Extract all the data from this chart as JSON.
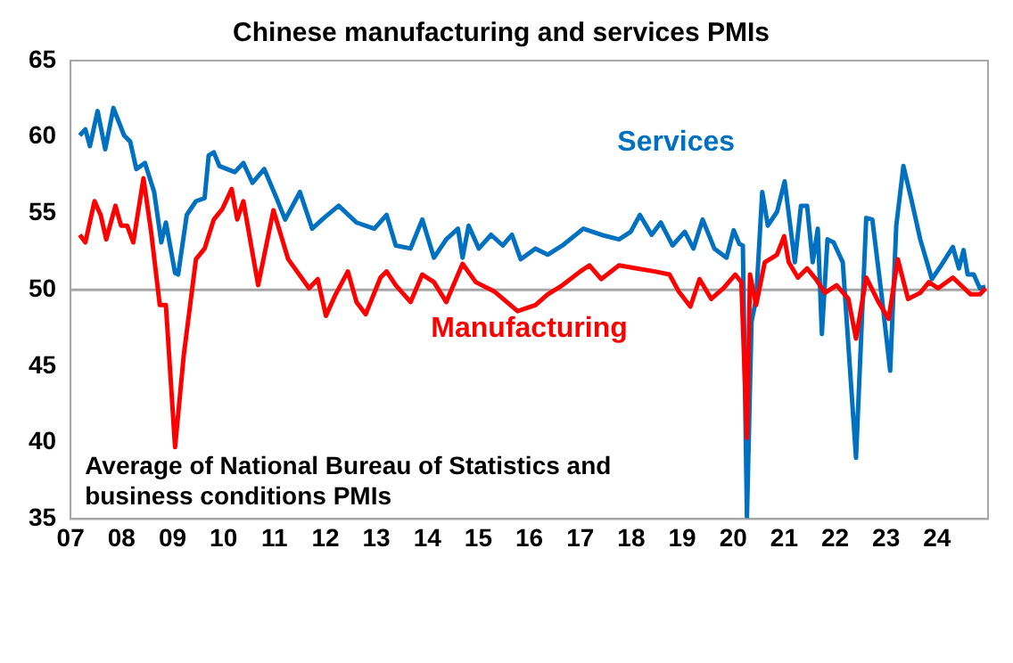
{
  "chart_data": {
    "type": "line",
    "title": "Chinese manufacturing and services PMIs",
    "annotations": [
      "Average of National Bureau of Statistics and business conditions PMIs"
    ],
    "xlim": [
      2007,
      2025
    ],
    "xticks": [
      {
        "value": 2007,
        "label": "07"
      },
      {
        "value": 2008,
        "label": "08"
      },
      {
        "value": 2009,
        "label": "09"
      },
      {
        "value": 2010,
        "label": "10"
      },
      {
        "value": 2011,
        "label": "11"
      },
      {
        "value": 2012,
        "label": "12"
      },
      {
        "value": 2013,
        "label": "13"
      },
      {
        "value": 2014,
        "label": "14"
      },
      {
        "value": 2015,
        "label": "15"
      },
      {
        "value": 2016,
        "label": "16"
      },
      {
        "value": 2017,
        "label": "17"
      },
      {
        "value": 2018,
        "label": "18"
      },
      {
        "value": 2019,
        "label": "19"
      },
      {
        "value": 2020,
        "label": "20"
      },
      {
        "value": 2021,
        "label": "21"
      },
      {
        "value": 2022,
        "label": "22"
      },
      {
        "value": 2023,
        "label": "23"
      },
      {
        "value": 2024,
        "label": "24"
      }
    ],
    "ylim": [
      35,
      65
    ],
    "yticks": [
      35,
      40,
      45,
      50,
      55,
      60,
      65
    ],
    "ref_lines": [
      {
        "axis": "y",
        "value": 50,
        "color": "#a6a6a6"
      }
    ],
    "grid": false,
    "legend": false,
    "series": [
      {
        "name": "Services",
        "color": "#0070c0",
        "x": [
          2007.18,
          2007.29,
          2007.38,
          2007.53,
          2007.68,
          2007.84,
          2008.05,
          2008.17,
          2008.29,
          2008.46,
          2008.64,
          2008.78,
          2008.87,
          2009.05,
          2009.11,
          2009.28,
          2009.46,
          2009.63,
          2009.71,
          2009.81,
          2009.92,
          2010.22,
          2010.39,
          2010.57,
          2010.8,
          2011.04,
          2011.21,
          2011.5,
          2011.74,
          2011.97,
          2012.26,
          2012.61,
          2012.96,
          2013.2,
          2013.38,
          2013.67,
          2013.9,
          2014.13,
          2014.37,
          2014.6,
          2014.69,
          2014.81,
          2015.01,
          2015.25,
          2015.48,
          2015.66,
          2015.83,
          2016.12,
          2016.36,
          2016.65,
          2017.06,
          2017.41,
          2017.76,
          2017.99,
          2018.17,
          2018.4,
          2018.58,
          2018.81,
          2019.05,
          2019.22,
          2019.4,
          2019.63,
          2019.87,
          2020.01,
          2020.12,
          2020.19,
          2020.27,
          2020.36,
          2020.45,
          2020.57,
          2020.68,
          2020.86,
          2021.01,
          2021.21,
          2021.33,
          2021.45,
          2021.56,
          2021.66,
          2021.74,
          2021.85,
          2021.97,
          2022.15,
          2022.41,
          2022.61,
          2022.73,
          2022.91,
          2023.08,
          2023.2,
          2023.34,
          2023.49,
          2023.67,
          2023.9,
          2024.08,
          2024.31,
          2024.43,
          2024.52,
          2024.6,
          2024.72,
          2024.84,
          2024.95
        ],
        "values": [
          60.1,
          60.5,
          59.4,
          61.7,
          59.2,
          61.9,
          60.1,
          59.7,
          57.9,
          58.3,
          56.4,
          53.1,
          54.4,
          51.1,
          51.0,
          54.9,
          55.8,
          56.0,
          58.8,
          59.0,
          58.1,
          57.7,
          58.3,
          57.0,
          57.9,
          56.0,
          54.6,
          56.4,
          54.0,
          54.7,
          55.5,
          54.4,
          54.0,
          54.9,
          52.9,
          52.7,
          54.6,
          52.1,
          53.3,
          54.0,
          52.1,
          54.2,
          52.7,
          53.6,
          52.9,
          53.6,
          52.0,
          52.7,
          52.3,
          52.9,
          54.0,
          53.6,
          53.3,
          53.8,
          54.9,
          53.6,
          54.4,
          52.9,
          53.8,
          52.7,
          54.6,
          52.7,
          52.1,
          53.9,
          53.0,
          52.9,
          35.1,
          47.9,
          49.4,
          56.4,
          54.2,
          55.1,
          57.1,
          51.8,
          55.5,
          55.5,
          51.8,
          54.0,
          47.1,
          53.3,
          53.1,
          51.8,
          39.0,
          54.7,
          54.6,
          49.7,
          44.7,
          54.2,
          58.1,
          56.0,
          53.3,
          50.7,
          51.6,
          52.8,
          51.4,
          52.6,
          51.0,
          51.0,
          50.1,
          50.2
        ]
      },
      {
        "name": "Manufacturing",
        "color": "#ff0000",
        "x": [
          2007.18,
          2007.29,
          2007.47,
          2007.59,
          2007.7,
          2007.88,
          2007.99,
          2008.11,
          2008.23,
          2008.43,
          2008.58,
          2008.75,
          2008.87,
          2009.05,
          2009.22,
          2009.46,
          2009.63,
          2009.81,
          2009.98,
          2010.16,
          2010.27,
          2010.39,
          2010.68,
          2010.98,
          2011.27,
          2011.68,
          2011.85,
          2012.01,
          2012.2,
          2012.44,
          2012.61,
          2012.79,
          2013.08,
          2013.2,
          2013.38,
          2013.67,
          2013.9,
          2014.13,
          2014.37,
          2014.69,
          2014.95,
          2015.31,
          2015.77,
          2016.12,
          2016.36,
          2016.65,
          2017.0,
          2017.18,
          2017.41,
          2017.76,
          2018.11,
          2018.46,
          2018.75,
          2018.93,
          2019.16,
          2019.34,
          2019.57,
          2019.81,
          2020.04,
          2020.16,
          2020.27,
          2020.33,
          2020.45,
          2020.62,
          2020.86,
          2021.0,
          2021.09,
          2021.27,
          2021.45,
          2021.62,
          2021.8,
          2022.03,
          2022.26,
          2022.41,
          2022.61,
          2022.85,
          2023.05,
          2023.23,
          2023.43,
          2023.67,
          2023.84,
          2024.02,
          2024.31,
          2024.66,
          2024.84,
          2024.95
        ],
        "values": [
          53.6,
          53.1,
          55.8,
          54.9,
          53.3,
          55.5,
          54.2,
          54.2,
          53.1,
          57.3,
          53.8,
          49.0,
          49.0,
          39.7,
          45.7,
          52.0,
          52.7,
          54.6,
          55.3,
          56.6,
          54.6,
          55.8,
          50.3,
          55.2,
          52.0,
          50.1,
          50.7,
          48.3,
          49.7,
          51.2,
          49.2,
          48.4,
          50.8,
          51.2,
          50.3,
          49.2,
          51.0,
          50.5,
          49.2,
          51.7,
          50.5,
          49.9,
          48.6,
          49.0,
          49.7,
          50.3,
          51.2,
          51.6,
          50.7,
          51.6,
          51.4,
          51.2,
          51.0,
          49.9,
          48.9,
          50.7,
          49.4,
          50.1,
          51.0,
          50.5,
          40.3,
          51.0,
          49.0,
          51.8,
          52.3,
          53.5,
          51.8,
          50.8,
          51.4,
          50.7,
          49.8,
          50.3,
          49.4,
          46.8,
          50.8,
          49.2,
          48.1,
          52.0,
          49.4,
          49.8,
          50.5,
          50.1,
          50.8,
          49.7,
          49.7,
          50.1
        ]
      }
    ]
  }
}
